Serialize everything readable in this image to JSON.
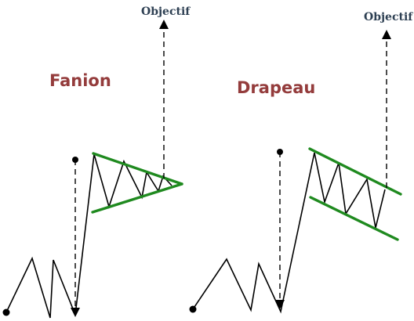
{
  "diagram": {
    "pennant": {
      "title": "Fanion",
      "target_label": "Objectif"
    },
    "flag": {
      "title": "Drapeau",
      "target_label": "Objectif"
    },
    "colors": {
      "title": "#943c3c",
      "target_label": "#2e4053",
      "trendline": "#1f8a1f",
      "price_line": "#000000"
    },
    "icons": [
      "start-dot-icon",
      "arrow-up-icon",
      "arrow-down-icon"
    ]
  }
}
